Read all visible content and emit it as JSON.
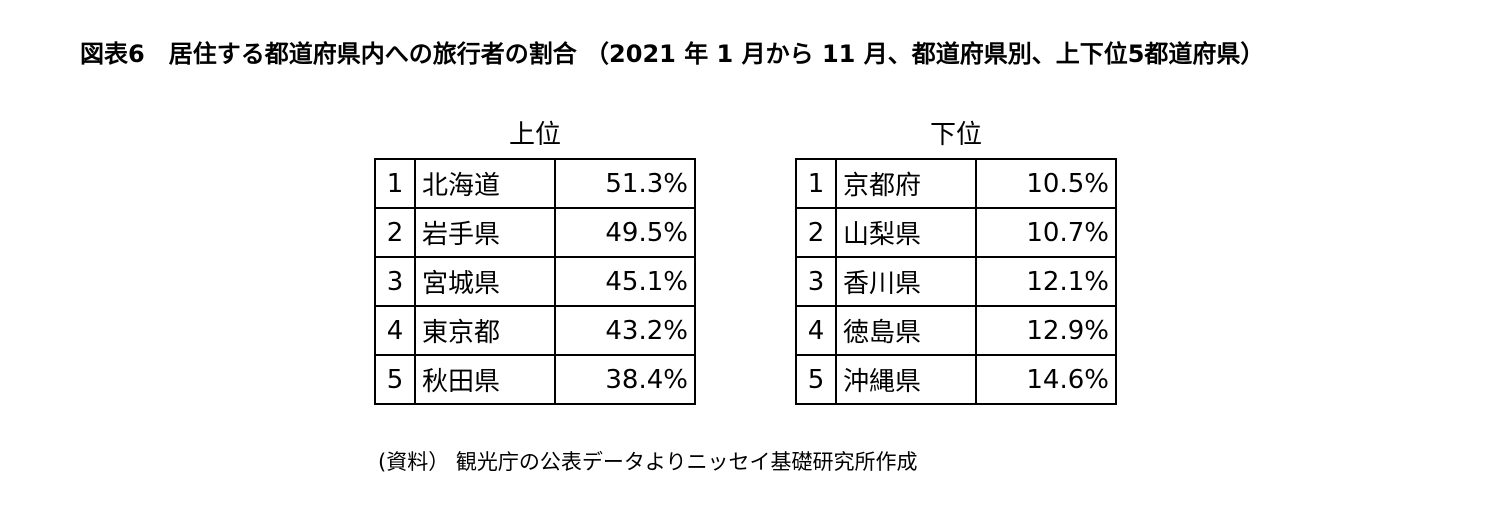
{
  "title": "図表6　居住する都道府県内への旅行者の割合 （2021 年 1 月から 11 月、都道府県別、上下位5都道府県）",
  "top_table": {
    "caption": "上位",
    "rows": [
      {
        "rank": "1",
        "prefecture": "北海道",
        "value": "51.3%"
      },
      {
        "rank": "2",
        "prefecture": "岩手県",
        "value": "49.5%"
      },
      {
        "rank": "3",
        "prefecture": "宮城県",
        "value": "45.1%"
      },
      {
        "rank": "4",
        "prefecture": "東京都",
        "value": "43.2%"
      },
      {
        "rank": "5",
        "prefecture": "秋田県",
        "value": "38.4%"
      }
    ]
  },
  "bottom_table": {
    "caption": "下位",
    "rows": [
      {
        "rank": "1",
        "prefecture": "京都府",
        "value": "10.5%"
      },
      {
        "rank": "2",
        "prefecture": "山梨県",
        "value": "10.7%"
      },
      {
        "rank": "3",
        "prefecture": "香川県",
        "value": "12.1%"
      },
      {
        "rank": "4",
        "prefecture": "徳島県",
        "value": "12.9%"
      },
      {
        "rank": "5",
        "prefecture": "沖縄県",
        "value": "14.6%"
      }
    ]
  },
  "source": "(資料） 観光庁の公表データよりニッセイ基礎研究所作成"
}
